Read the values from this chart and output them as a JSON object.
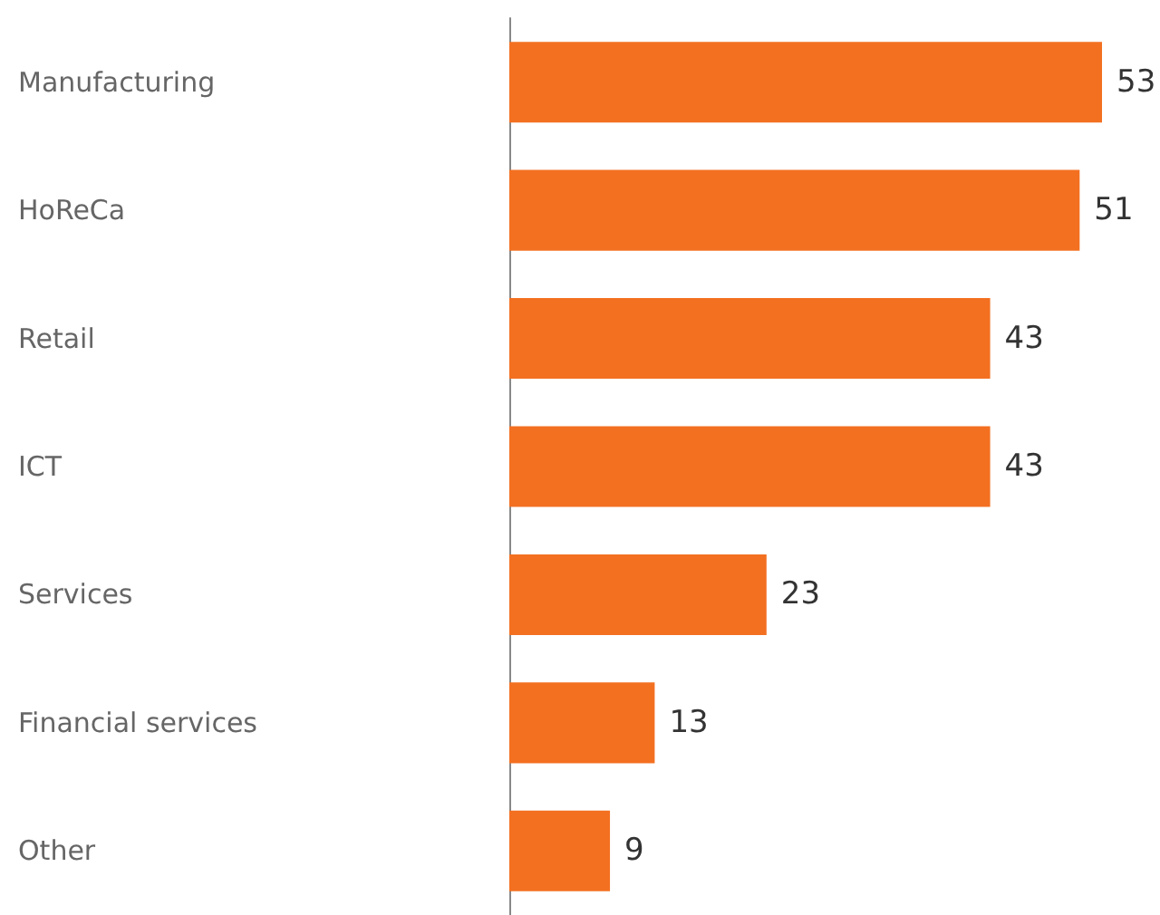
{
  "chart_data": {
    "type": "bar",
    "orientation": "horizontal",
    "categories": [
      "Manufacturing",
      "HoReCa",
      "Retail",
      "ICT",
      "Services",
      "Financial services",
      "Other"
    ],
    "values": [
      53,
      51,
      43,
      43,
      23,
      13,
      9
    ],
    "color": "#f37021",
    "data_labels": true,
    "tick_labels": "y"
  }
}
